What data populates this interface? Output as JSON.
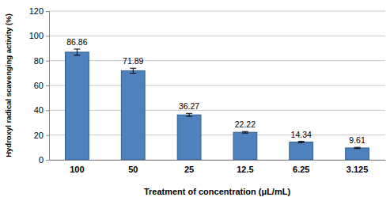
{
  "chart_data": {
    "type": "bar",
    "x_label": "Treatment of concentration (μL/mL)",
    "y_label": "Hydroxyl radical scavenging activity (%)",
    "categories": [
      "100",
      "50",
      "25",
      "12.5",
      "6.25",
      "3.125"
    ],
    "values": [
      86.86,
      71.89,
      36.27,
      22.22,
      14.34,
      9.61
    ],
    "errors": [
      2.5,
      2,
      1.2,
      0.6,
      0.6,
      0.5
    ],
    "color": "#4f81bd",
    "ylim": [
      0,
      120
    ],
    "yticks": [
      0,
      20,
      40,
      60,
      80,
      100,
      120
    ],
    "grid": true,
    "data_labels": true
  }
}
